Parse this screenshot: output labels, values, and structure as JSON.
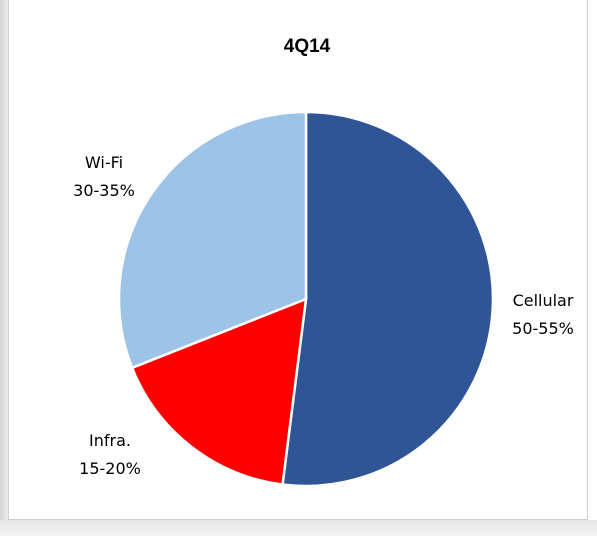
{
  "chart_data": {
    "type": "pie",
    "title": "4Q14",
    "slices": [
      {
        "label": "Cellular",
        "range": "50-55%",
        "value": 52,
        "color": "#2f5597"
      },
      {
        "label": "Infra.",
        "range": "15-20%",
        "value": 17,
        "color": "#ff0000"
      },
      {
        "label": "Wi-Fi",
        "range": "30-35%",
        "value": 31,
        "color": "#9dc3e6"
      }
    ],
    "start_angle": "12 o'clock",
    "direction": "clockwise",
    "legend": "none"
  }
}
